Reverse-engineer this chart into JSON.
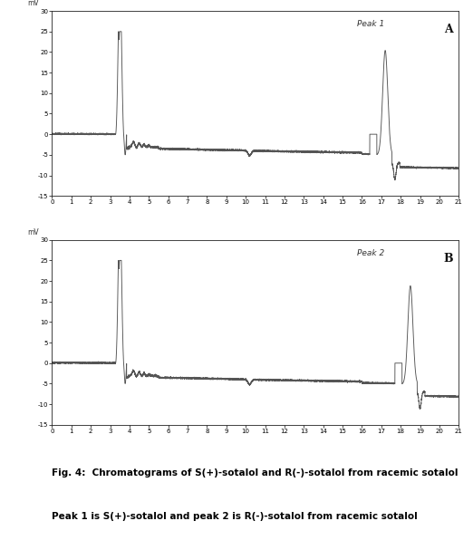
{
  "panel_A_label": "A",
  "panel_B_label": "B",
  "peak1_label": "Peak 1",
  "peak2_label": "Peak 2",
  "x_min": 0,
  "x_max": 21,
  "y_min_A": -15,
  "y_max_A": 30,
  "y_ticks_A": [
    -15,
    -10,
    -5,
    0,
    5,
    10,
    15,
    20,
    25,
    30
  ],
  "y_min_B": -15,
  "y_max_B": 30,
  "y_ticks_B": [
    -15,
    -10,
    -5,
    0,
    5,
    10,
    15,
    20,
    25,
    30
  ],
  "line_color": "#555555",
  "bg_color": "#ffffff",
  "fig_caption": "Fig. 4:  Chromatograms of S(+)-sotalol and R(-)-sotalol from racemic sotalol",
  "fig_caption2": "Peak 1 is S(+)-sotalol and peak 2 is R(-)-sotalol from racemic sotalol"
}
